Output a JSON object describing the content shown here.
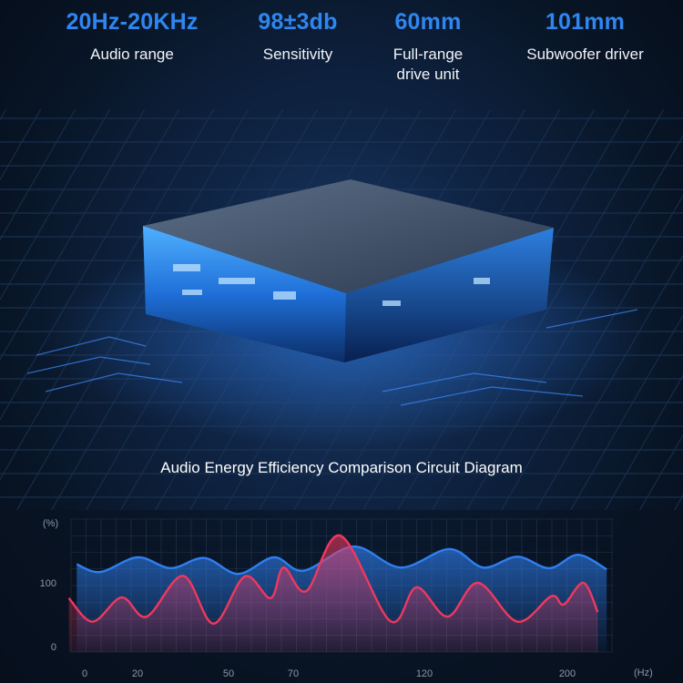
{
  "specs": [
    {
      "value": "20Hz-20KHz",
      "label": "Audio range"
    },
    {
      "value": "98±3db",
      "label": "Sensitivity"
    },
    {
      "value": "60mm",
      "label": "Full-range\ndrive unit"
    },
    {
      "value": "101mm",
      "label": "Subwoofer driver"
    }
  ],
  "caption": "Audio Energy Efficiency Comparison Circuit Diagram",
  "colors": {
    "accent": "#2f86f0",
    "series_blue": "#2f7ff0",
    "series_red": "#f0385e"
  },
  "chart_data": {
    "type": "area",
    "title": "Audio Energy Efficiency Comparison Circuit Diagram",
    "ylabel": "(%)",
    "xlabel": "(Hz)",
    "x_ticks": [
      0,
      20,
      50,
      70,
      120,
      200
    ],
    "y_ticks": [
      0,
      100
    ],
    "grid": true,
    "series": [
      {
        "color": "#2f7ff0",
        "x": [
          -3,
          6,
          20,
          31,
          42,
          53,
          64,
          74,
          93,
          111,
          134,
          153,
          172,
          190,
          206,
          222
        ],
        "y": [
          129,
          117,
          140,
          123,
          139,
          114,
          140,
          119,
          157,
          124,
          153,
          124,
          141,
          123,
          144,
          121
        ]
      },
      {
        "color": "#f0385e",
        "x": [
          -6,
          3,
          14,
          23,
          35,
          45,
          55,
          63,
          67,
          75,
          88,
          107,
          117,
          133,
          150,
          172,
          191,
          198,
          209,
          217
        ],
        "y": [
          76,
          39,
          77,
          47,
          111,
          36,
          110,
          76,
          124,
          87,
          174,
          40,
          93,
          47,
          100,
          39,
          79,
          66,
          100,
          54
        ]
      }
    ]
  }
}
